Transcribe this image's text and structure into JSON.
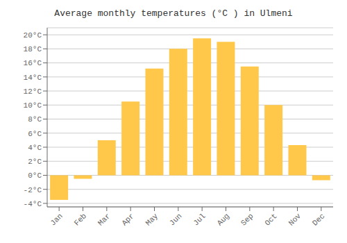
{
  "chart_data": {
    "type": "bar",
    "title": "Average monthly temperatures (°C ) in Ulmeni",
    "categories": [
      "Jan",
      "Feb",
      "Mar",
      "Apr",
      "May",
      "Jun",
      "Jul",
      "Aug",
      "Sep",
      "Oct",
      "Nov",
      "Dec"
    ],
    "values": [
      -3.5,
      -0.5,
      5.0,
      10.5,
      15.2,
      18.0,
      19.5,
      19.0,
      15.5,
      10.0,
      4.3,
      -0.7
    ],
    "color": "#FFC84A",
    "ylim": [
      -4.5,
      21.0
    ],
    "yticks": [
      {
        "value": -4,
        "label": "-4°C"
      },
      {
        "value": -2,
        "label": "-2°C"
      },
      {
        "value": 0,
        "label": "0°C"
      },
      {
        "value": 2,
        "label": "2°C"
      },
      {
        "value": 4,
        "label": "4°C"
      },
      {
        "value": 6,
        "label": "6°C"
      },
      {
        "value": 8,
        "label": "8°C"
      },
      {
        "value": 10,
        "label": "10°C"
      },
      {
        "value": 12,
        "label": "12°C"
      },
      {
        "value": 14,
        "label": "14°C"
      },
      {
        "value": 16,
        "label": "16°C"
      },
      {
        "value": 18,
        "label": "18°C"
      },
      {
        "value": 20,
        "label": "20°C"
      }
    ],
    "grid": true
  }
}
